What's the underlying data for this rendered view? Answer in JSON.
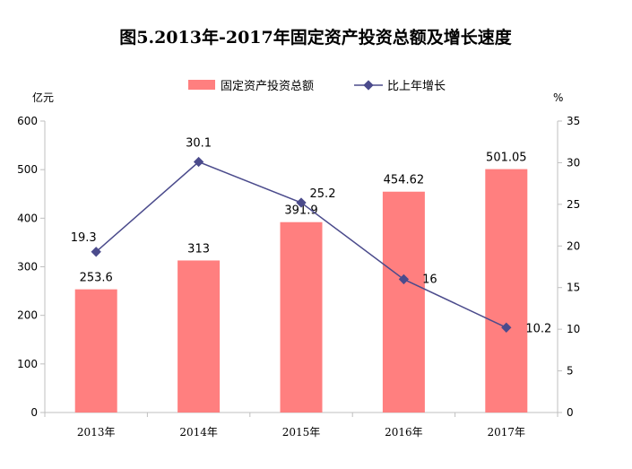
{
  "chart_data": {
    "type": "bar+line",
    "title": "图5.2013年-2017年固定资产投资总额及增长速度",
    "categories": [
      "2013年",
      "2014年",
      "2015年",
      "2016年",
      "2017年"
    ],
    "series": [
      {
        "name": "固定资产投资总额",
        "type": "bar",
        "axis": "left",
        "values": [
          253.6,
          313,
          391.9,
          454.62,
          501.05
        ],
        "labels": [
          "253.6",
          "313",
          "391.9",
          "454.62",
          "501.05"
        ],
        "color": "#ff7f7f"
      },
      {
        "name": "比上年增长",
        "type": "line",
        "axis": "right",
        "values": [
          19.3,
          30.1,
          25.2,
          16,
          10.2
        ],
        "labels": [
          "19.3",
          "30.1",
          "25.2",
          "16",
          "10.2"
        ],
        "color": "#4b4b8c"
      }
    ],
    "left_axis": {
      "unit": "亿元",
      "ylim": [
        0,
        600
      ],
      "ticks": [
        0,
        100,
        200,
        300,
        400,
        500,
        600
      ],
      "tick_labels": [
        "0",
        "100",
        "200",
        "300",
        "400",
        "500",
        "600"
      ]
    },
    "right_axis": {
      "unit": "%",
      "ylim": [
        0,
        35
      ],
      "ticks": [
        0,
        5,
        10,
        15,
        20,
        25,
        30,
        35
      ],
      "tick_labels": [
        "0",
        "5",
        "10",
        "15",
        "20",
        "25",
        "30",
        "35"
      ]
    },
    "legend_position": "top-center",
    "grid": false
  }
}
